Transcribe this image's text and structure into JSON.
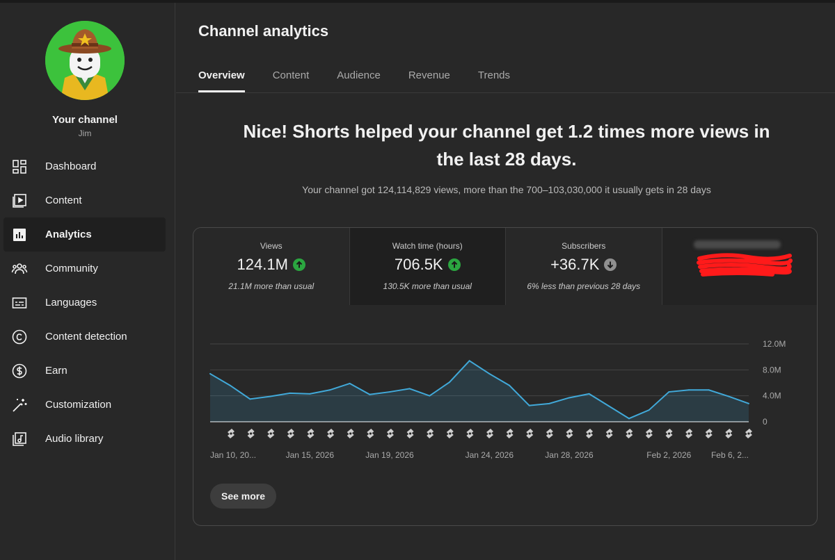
{
  "sidebar": {
    "channel_name": "Your channel",
    "channel_handle": "Jim",
    "items": [
      {
        "label": "Dashboard",
        "icon": "dashboard-icon"
      },
      {
        "label": "Content",
        "icon": "content-icon"
      },
      {
        "label": "Analytics",
        "icon": "analytics-icon",
        "active": true
      },
      {
        "label": "Community",
        "icon": "community-icon"
      },
      {
        "label": "Languages",
        "icon": "subtitles-icon"
      },
      {
        "label": "Content detection",
        "icon": "copyright-icon"
      },
      {
        "label": "Earn",
        "icon": "dollar-icon"
      },
      {
        "label": "Customization",
        "icon": "magic-wand-icon"
      },
      {
        "label": "Audio library",
        "icon": "audio-library-icon"
      }
    ]
  },
  "header": {
    "title": "Channel analytics",
    "tabs": [
      "Overview",
      "Content",
      "Audience",
      "Revenue",
      "Trends"
    ],
    "active_tab": "Overview"
  },
  "summary": {
    "headline": "Nice! Shorts helped your channel get 1.2 times more views in the last 28 days.",
    "subline": "Your channel got 124,114,829 views, more than the 700–103,030,000 it usually gets in 28 days"
  },
  "metrics": [
    {
      "label": "Views",
      "value": "124.1M",
      "trend": "up",
      "note": "21.1M more than usual"
    },
    {
      "label": "Watch time (hours)",
      "value": "706.5K",
      "trend": "up",
      "note": "130.5K more than usual"
    },
    {
      "label": "Subscribers",
      "value": "+36.7K",
      "trend": "down",
      "note": "6% less than previous 28 days"
    }
  ],
  "colors": {
    "up": "#2ba640",
    "down": "#909090",
    "line": "#41a9d9"
  },
  "chart_data": {
    "type": "area",
    "ylim": [
      0,
      12000000
    ],
    "y_ticks": [
      "12.0M",
      "8.0M",
      "4.0M",
      "0"
    ],
    "y_tick_values": [
      12000000,
      8000000,
      4000000,
      0
    ],
    "x_tick_labels": [
      "Jan 10, 20...",
      "Jan 15, 2026",
      "Jan 19, 2026",
      "Jan 24, 2026",
      "Jan 28, 2026",
      "Feb 2, 2026",
      "Feb 6, 2..."
    ],
    "x_tick_index": [
      0,
      5,
      9,
      14,
      18,
      23,
      27
    ],
    "values": [
      7400000,
      5600000,
      3500000,
      3900000,
      4400000,
      4300000,
      4900000,
      5900000,
      4200000,
      4600000,
      5100000,
      4000000,
      6100000,
      9400000,
      7400000,
      5600000,
      2500000,
      2800000,
      3700000,
      4300000,
      2400000,
      500000,
      1800000,
      4600000,
      4900000,
      4900000,
      3900000,
      2800000
    ],
    "shorts_markers": 27,
    "grid": true
  },
  "see_more_label": "See more"
}
